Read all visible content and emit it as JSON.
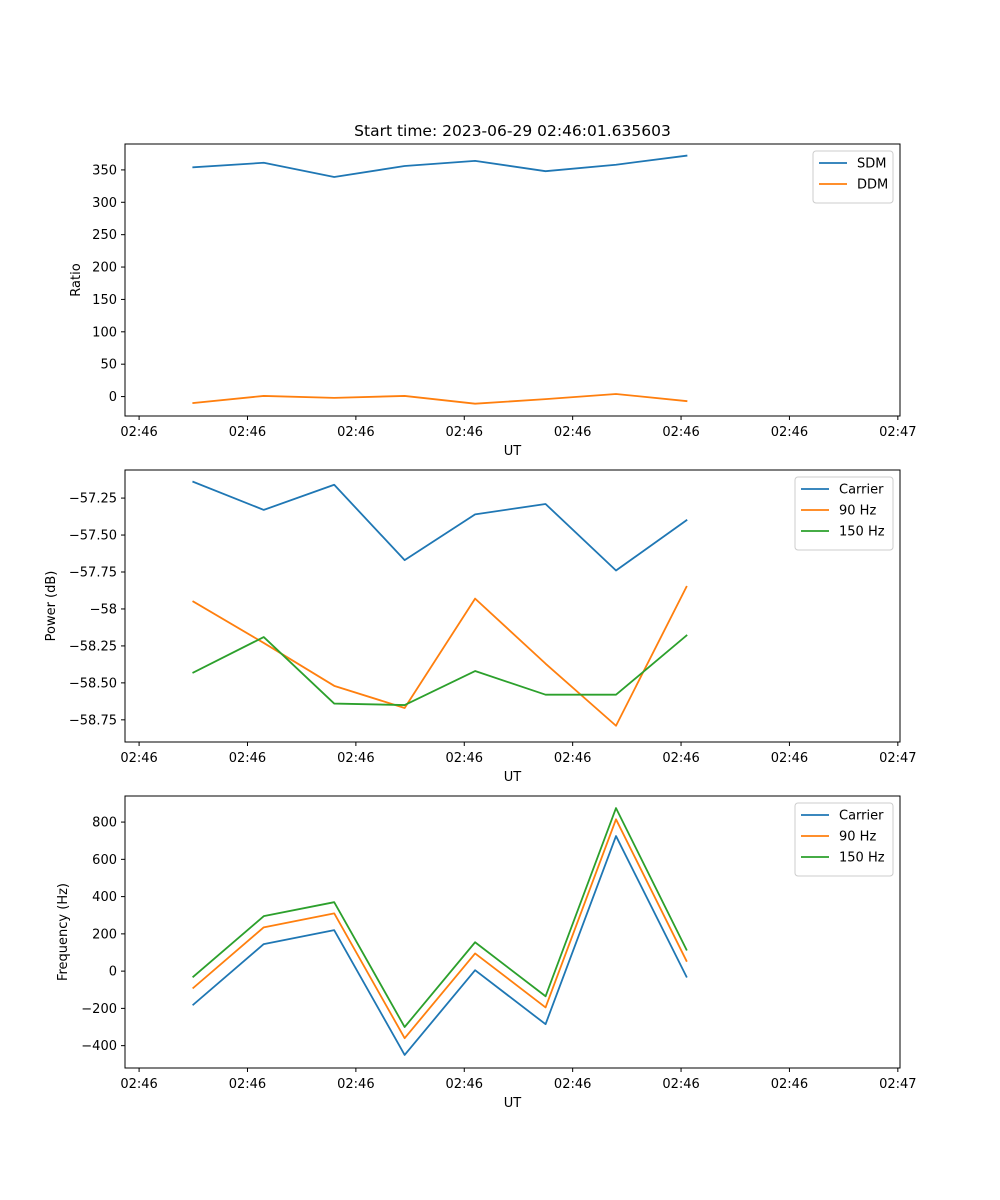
{
  "figure": {
    "title": "Start time: 2023-06-29 02:46:01.635603"
  },
  "chart_data": [
    {
      "type": "line",
      "xlabel": "UT",
      "ylabel": "Ratio",
      "x_ticks": [
        "02:46",
        "02:46",
        "02:46",
        "02:46",
        "02:46",
        "02:46",
        "02:46",
        "02:47"
      ],
      "x_tick_positions": [
        0,
        1,
        2,
        3,
        4,
        5,
        6,
        7
      ],
      "x_points": [
        0.5,
        1.15,
        1.8,
        2.45,
        3.1,
        3.75,
        4.4,
        5.05
      ],
      "xlim": [
        -0.13,
        7.02
      ],
      "ylim": [
        -30,
        390
      ],
      "y_ticks": [
        0,
        50,
        100,
        150,
        200,
        250,
        300,
        350
      ],
      "legend": "top-right",
      "grid": false,
      "series": [
        {
          "name": "SDM",
          "color": "#1f77b4",
          "values": [
            354,
            361,
            339,
            356,
            364,
            348,
            358,
            372
          ]
        },
        {
          "name": "DDM",
          "color": "#ff7f0e",
          "values": [
            -10,
            1,
            -2,
            1,
            -11,
            -4,
            4,
            -7
          ]
        }
      ]
    },
    {
      "type": "line",
      "xlabel": "UT",
      "ylabel": "Power (dB)",
      "x_ticks": [
        "02:46",
        "02:46",
        "02:46",
        "02:46",
        "02:46",
        "02:46",
        "02:46",
        "02:47"
      ],
      "x_tick_positions": [
        0,
        1,
        2,
        3,
        4,
        5,
        6,
        7
      ],
      "x_points": [
        0.5,
        1.15,
        1.8,
        2.45,
        3.1,
        3.75,
        4.4,
        5.05
      ],
      "xlim": [
        -0.13,
        7.02
      ],
      "ylim": [
        -58.9,
        -57.06
      ],
      "y_ticks": [
        -58.75,
        -58.5,
        -58.25,
        -58.0,
        -57.75,
        -57.5,
        -57.25
      ],
      "legend": "top-right",
      "grid": false,
      "series": [
        {
          "name": "Carrier",
          "color": "#1f77b4",
          "values": [
            -57.14,
            -57.33,
            -57.16,
            -57.67,
            -57.36,
            -57.29,
            -57.74,
            -57.4
          ]
        },
        {
          "name": "90 Hz",
          "color": "#ff7f0e",
          "values": [
            -57.95,
            -58.23,
            -58.52,
            -58.67,
            -57.93,
            -58.37,
            -58.79,
            -57.85
          ]
        },
        {
          "name": "150 Hz",
          "color": "#2ca02c",
          "values": [
            -58.43,
            -58.19,
            -58.64,
            -58.65,
            -58.42,
            -58.58,
            -58.58,
            -58.18
          ]
        }
      ]
    },
    {
      "type": "line",
      "xlabel": "UT",
      "ylabel": "Frequency (Hz)",
      "x_ticks": [
        "02:46",
        "02:46",
        "02:46",
        "02:46",
        "02:46",
        "02:46",
        "02:46",
        "02:47"
      ],
      "x_tick_positions": [
        0,
        1,
        2,
        3,
        4,
        5,
        6,
        7
      ],
      "x_points": [
        0.5,
        1.15,
        1.8,
        2.45,
        3.1,
        3.75,
        4.4,
        5.05
      ],
      "xlim": [
        -0.13,
        7.02
      ],
      "ylim": [
        -520,
        940
      ],
      "y_ticks": [
        -400,
        -200,
        0,
        200,
        400,
        600,
        800
      ],
      "legend": "top-right",
      "grid": false,
      "series": [
        {
          "name": "Carrier",
          "color": "#1f77b4",
          "values": [
            -180,
            145,
            220,
            -450,
            5,
            -285,
            725,
            -30
          ]
        },
        {
          "name": "90 Hz",
          "color": "#ff7f0e",
          "values": [
            -90,
            235,
            310,
            -360,
            95,
            -195,
            815,
            55
          ]
        },
        {
          "name": "150 Hz",
          "color": "#2ca02c",
          "values": [
            -30,
            295,
            370,
            -300,
            155,
            -135,
            875,
            115
          ]
        }
      ]
    }
  ]
}
